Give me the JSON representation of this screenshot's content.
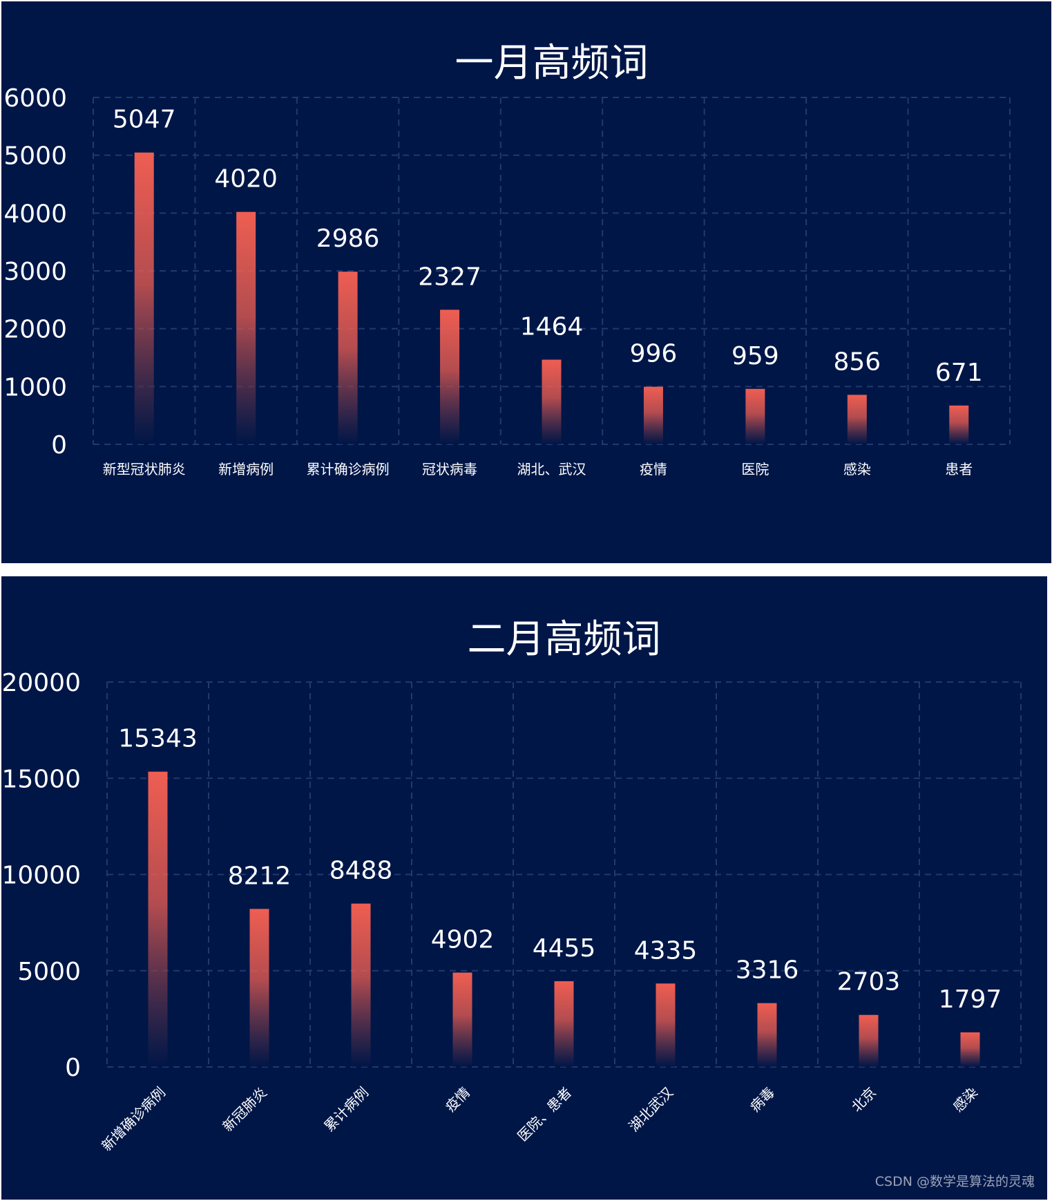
{
  "colors": {
    "background": "#001647",
    "grid": "#1f3a6e",
    "bar_top": "#ef5e52",
    "bar_bottom": "#001647",
    "text": "#ffffff"
  },
  "watermark": "CSDN @数学是算法的灵魂",
  "chart_data": [
    {
      "type": "bar",
      "title": "一月高频词",
      "xlabel": "",
      "ylabel": "",
      "categories": [
        "新型冠状肺炎",
        "新增病例",
        "累计确诊病例",
        "冠状病毒",
        "湖北、武汉",
        "疫情",
        "医院",
        "感染",
        "患者"
      ],
      "values": [
        5047,
        4020,
        2986,
        2327,
        1464,
        996,
        959,
        856,
        671
      ],
      "ylim": [
        0,
        6000
      ],
      "yticks": [
        0,
        1000,
        2000,
        3000,
        4000,
        5000,
        6000
      ],
      "grid": true,
      "xtick_rotation": 0
    },
    {
      "type": "bar",
      "title": "二月高频词",
      "xlabel": "",
      "ylabel": "",
      "categories": [
        "新增确诊病例",
        "新冠肺炎",
        "累计病例",
        "疫情",
        "医院、患者",
        "湖北武汉",
        "病毒",
        "北京",
        "感染"
      ],
      "values": [
        15343,
        8212,
        8488,
        4902,
        4455,
        4335,
        3316,
        2703,
        1797
      ],
      "ylim": [
        0,
        20000
      ],
      "yticks": [
        0,
        5000,
        10000,
        15000,
        20000
      ],
      "grid": true,
      "xtick_rotation": -45
    }
  ]
}
